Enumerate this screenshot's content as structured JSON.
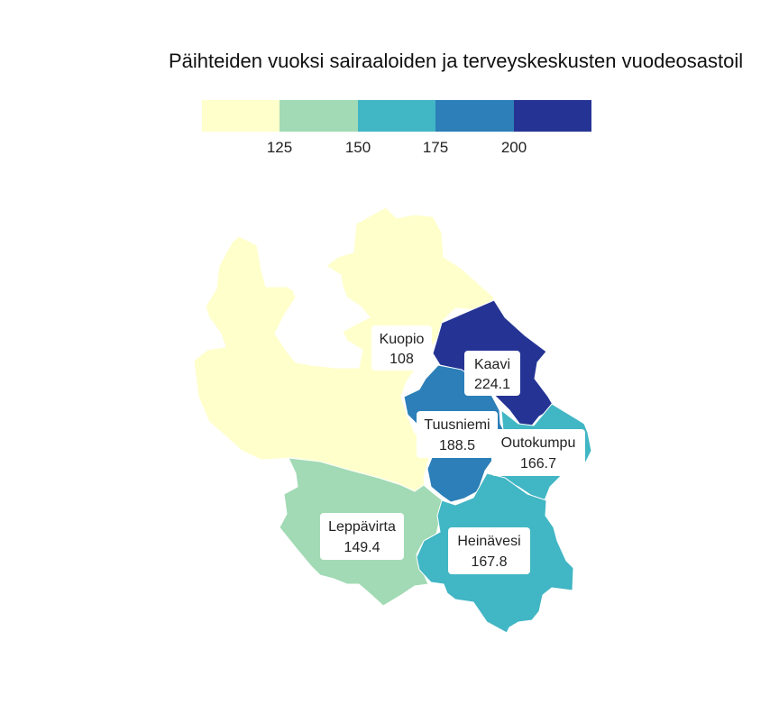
{
  "title": "Päihteiden vuoksi sairaaloiden ja terveyskeskusten vuodeosastoil",
  "legend": {
    "colors": [
      "#ffffcc",
      "#a1dab4",
      "#41b6c4",
      "#2c7fb8",
      "#253494"
    ],
    "ticks": [
      "125",
      "150",
      "175",
      "200"
    ],
    "breaks": [
      125,
      150,
      175,
      200
    ]
  },
  "regions": [
    {
      "name": "Kuopio",
      "value": "108",
      "color": "#ffffcc"
    },
    {
      "name": "Kaavi",
      "value": "224.1",
      "color": "#253494"
    },
    {
      "name": "Tuusniemi",
      "value": "188.5",
      "color": "#2c7fb8"
    },
    {
      "name": "Outokumpu",
      "value": "166.7",
      "color": "#41b6c4"
    },
    {
      "name": "Leppävirta",
      "value": "149.4",
      "color": "#a1dab4"
    },
    {
      "name": "Heinävesi",
      "value": "167.8",
      "color": "#41b6c4"
    }
  ]
}
